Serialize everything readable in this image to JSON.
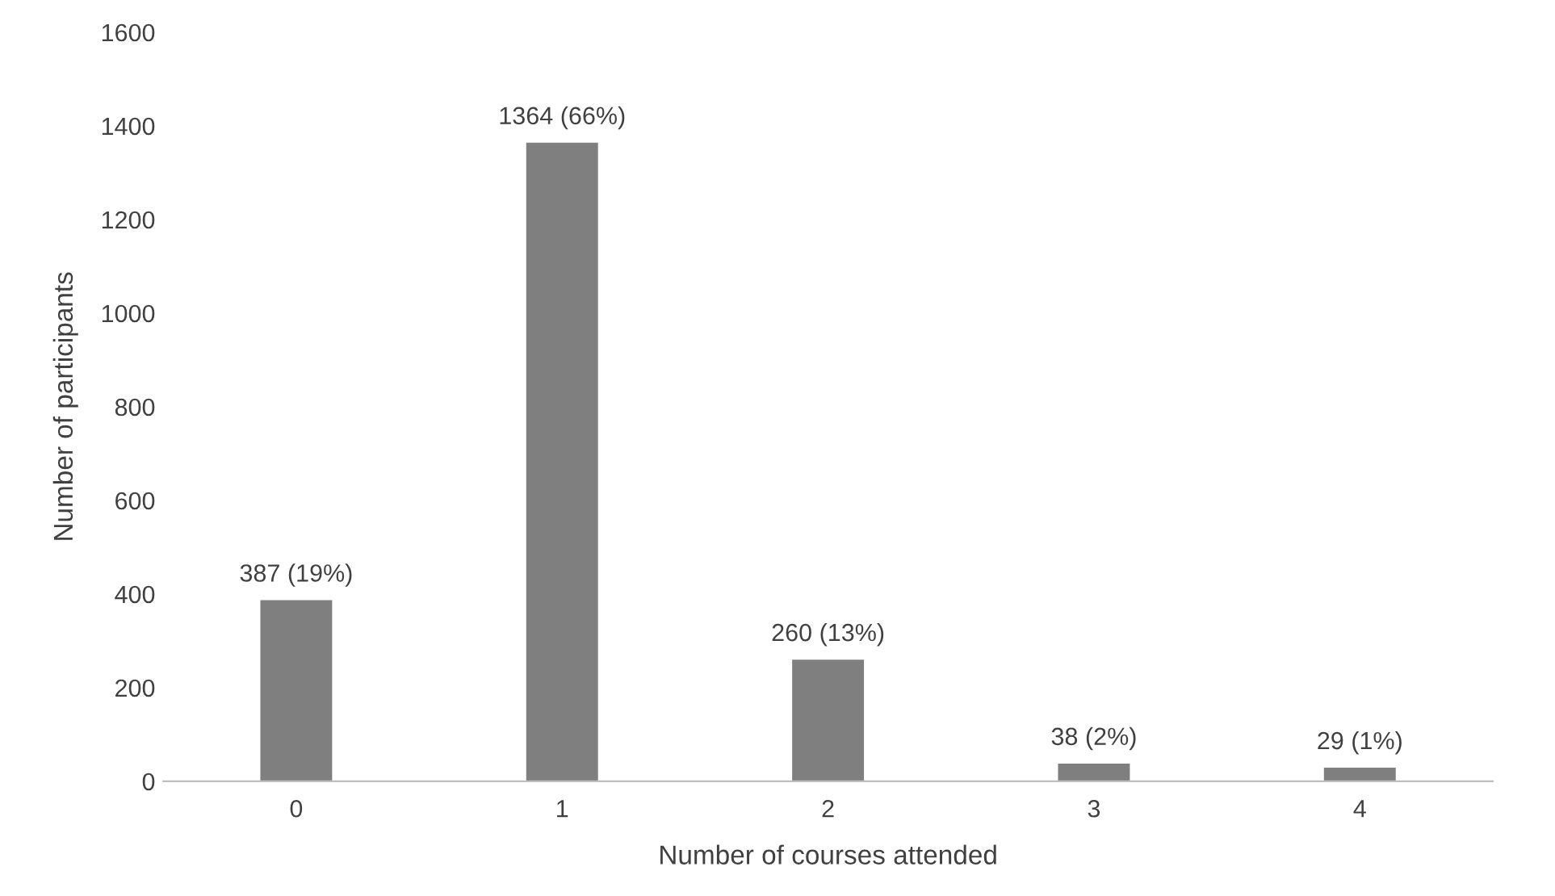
{
  "chart_data": {
    "type": "bar",
    "xlabel": "Number of courses attended",
    "ylabel": "Number of participants",
    "categories": [
      "0",
      "1",
      "2",
      "3",
      "4"
    ],
    "values": [
      387,
      1364,
      260,
      38,
      29
    ],
    "value_labels": [
      "387 (19%)",
      "1364 (66%)",
      "260 (13%)",
      "38 (2%)",
      "29 (1%)"
    ],
    "color": "#7f7f7f",
    "ylim": [
      0,
      1600
    ],
    "yticks": [
      0,
      200,
      400,
      600,
      800,
      1000,
      1200,
      1400,
      1600
    ],
    "grid": false,
    "legend": false
  }
}
